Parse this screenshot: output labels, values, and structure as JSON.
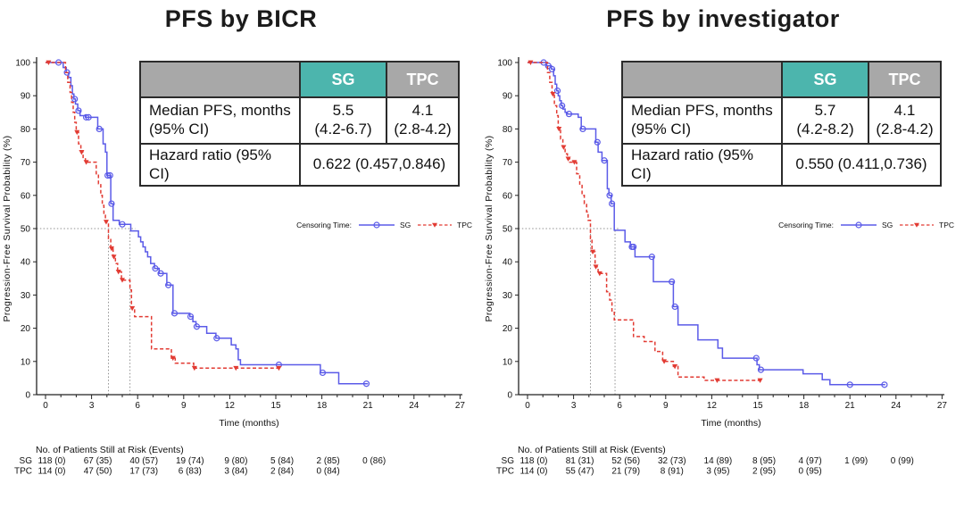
{
  "chart_data": [
    {
      "type": "line",
      "subtype": "kaplan-meier",
      "title": "PFS by BICR",
      "xlabel": "Time (months)",
      "ylabel": "Progression-Free Survival Probability (%)",
      "xlim": [
        0,
        27
      ],
      "ylim": [
        0,
        100
      ],
      "x_ticks": [
        0,
        3,
        6,
        9,
        12,
        15,
        18,
        21,
        24,
        27
      ],
      "y_ticks": [
        0,
        10,
        20,
        30,
        40,
        50,
        60,
        70,
        80,
        90,
        100
      ],
      "grid": "off",
      "legend": {
        "label": "Censoring Time:",
        "entries": [
          "SG",
          "TPC"
        ],
        "position": "right-middle"
      },
      "reference_lines": {
        "horizontal_y": 50,
        "vertical_x": [
          4.1,
          5.5
        ]
      },
      "series": [
        {
          "name": "SG",
          "color": "#5b5be8",
          "line": "solid",
          "marker": "open-circle",
          "steps": [
            [
              0,
              100
            ],
            [
              1.15,
              98.5
            ],
            [
              1.35,
              97
            ],
            [
              1.5,
              95.5
            ],
            [
              1.65,
              93
            ],
            [
              1.75,
              90.5
            ],
            [
              1.85,
              89
            ],
            [
              1.95,
              87.5
            ],
            [
              2.1,
              85.5
            ],
            [
              2.25,
              84
            ],
            [
              2.6,
              83.5
            ],
            [
              3.4,
              80
            ],
            [
              3.75,
              75.5
            ],
            [
              3.9,
              73
            ],
            [
              4.0,
              66
            ],
            [
              4.25,
              57.5
            ],
            [
              4.4,
              52.5
            ],
            [
              4.8,
              51.3
            ],
            [
              5.55,
              49.3
            ],
            [
              6.05,
              47.5
            ],
            [
              6.2,
              46
            ],
            [
              6.35,
              44.5
            ],
            [
              6.5,
              43
            ],
            [
              6.65,
              41.5
            ],
            [
              6.85,
              39.5
            ],
            [
              7.1,
              38
            ],
            [
              7.4,
              36.5
            ],
            [
              7.9,
              33
            ],
            [
              8.3,
              24.5
            ],
            [
              9.4,
              23.5
            ],
            [
              9.6,
              22
            ],
            [
              9.8,
              20.5
            ],
            [
              10.5,
              18.5
            ],
            [
              11.1,
              17
            ],
            [
              12.1,
              15
            ],
            [
              12.4,
              13.8
            ],
            [
              12.55,
              10.5
            ],
            [
              12.7,
              9
            ],
            [
              17.9,
              6.6
            ],
            [
              19.1,
              3.3
            ],
            [
              21,
              3.3
            ]
          ],
          "censor_marks": [
            [
              0.85,
              100
            ],
            [
              1.4,
              97
            ],
            [
              1.9,
              89
            ],
            [
              2.15,
              85.5
            ],
            [
              2.65,
              83.5
            ],
            [
              2.8,
              83.5
            ],
            [
              3.5,
              80
            ],
            [
              4.05,
              66
            ],
            [
              4.2,
              66
            ],
            [
              4.3,
              57.5
            ],
            [
              5.0,
              51.3
            ],
            [
              7.15,
              38
            ],
            [
              7.5,
              36.5
            ],
            [
              8.0,
              33
            ],
            [
              8.4,
              24.5
            ],
            [
              9.45,
              23.5
            ],
            [
              9.85,
              20.5
            ],
            [
              11.15,
              17
            ],
            [
              15.2,
              9
            ],
            [
              18.05,
              6.6
            ],
            [
              20.9,
              3.3
            ]
          ]
        },
        {
          "name": "TPC",
          "color": "#e23b33",
          "line": "dashed",
          "marker": "filled-triangle-down",
          "steps": [
            [
              0,
              100
            ],
            [
              1.3,
              97
            ],
            [
              1.45,
              94
            ],
            [
              1.6,
              91
            ],
            [
              1.7,
              88
            ],
            [
              1.8,
              85
            ],
            [
              1.9,
              82
            ],
            [
              2.0,
              79
            ],
            [
              2.15,
              75.5
            ],
            [
              2.3,
              73
            ],
            [
              2.45,
              71
            ],
            [
              2.6,
              70
            ],
            [
              3.3,
              66.5
            ],
            [
              3.45,
              63.5
            ],
            [
              3.6,
              60
            ],
            [
              3.7,
              57
            ],
            [
              3.8,
              54
            ],
            [
              3.9,
              52
            ],
            [
              4.1,
              47
            ],
            [
              4.25,
              44
            ],
            [
              4.4,
              41.5
            ],
            [
              4.55,
              39.5
            ],
            [
              4.7,
              37
            ],
            [
              4.95,
              34.5
            ],
            [
              5.5,
              31.5
            ],
            [
              5.6,
              26
            ],
            [
              5.8,
              23.5
            ],
            [
              6.9,
              13.8
            ],
            [
              8.2,
              11
            ],
            [
              8.45,
              9.5
            ],
            [
              9.65,
              8
            ],
            [
              15.3,
              8
            ]
          ],
          "censor_marks": [
            [
              0.2,
              100
            ],
            [
              2.05,
              79
            ],
            [
              2.35,
              73
            ],
            [
              2.65,
              70
            ],
            [
              3.95,
              52
            ],
            [
              4.3,
              44
            ],
            [
              4.45,
              41.5
            ],
            [
              4.75,
              37
            ],
            [
              5.0,
              34.5
            ],
            [
              5.65,
              26
            ],
            [
              8.3,
              11
            ],
            [
              9.7,
              8
            ],
            [
              12.4,
              8
            ],
            [
              15.2,
              8
            ]
          ]
        }
      ],
      "stats_table": {
        "columns": [
          "SG",
          "TPC"
        ],
        "median_row": {
          "label_line1": "Median PFS, months",
          "label_line2": "(95% CI)",
          "sg_line1": "5.5",
          "sg_line2": "(4.2-6.7)",
          "tpc_line1": "4.1",
          "tpc_line2": "(2.8-4.2)"
        },
        "hazard_row": {
          "label": "Hazard ratio (95% CI)",
          "value": "0.622 (0.457,0.846)"
        }
      },
      "at_risk": {
        "title": "No. of Patients Still at Risk (Events)",
        "times": [
          0,
          3,
          6,
          9,
          12,
          15,
          18,
          21,
          24
        ],
        "rows": [
          {
            "name": "SG",
            "values": [
              "118 (0)",
              "67 (35)",
              "40 (57)",
              "19 (74)",
              "9 (80)",
              "5 (84)",
              "2 (85)",
              "0 (86)"
            ]
          },
          {
            "name": "TPC",
            "values": [
              "114 (0)",
              "47 (50)",
              "17 (73)",
              "6 (83)",
              "3 (84)",
              "2 (84)",
              "0 (84)"
            ]
          }
        ]
      }
    },
    {
      "type": "line",
      "subtype": "kaplan-meier",
      "title": "PFS by investigator",
      "xlabel": "Time (months)",
      "ylabel": "Progression-Free Survival Probability (%)",
      "xlim": [
        0,
        27
      ],
      "ylim": [
        0,
        100
      ],
      "x_ticks": [
        0,
        3,
        6,
        9,
        12,
        15,
        18,
        21,
        24,
        27
      ],
      "y_ticks": [
        0,
        10,
        20,
        30,
        40,
        50,
        60,
        70,
        80,
        90,
        100
      ],
      "grid": "off",
      "legend": {
        "label": "Censoring Time:",
        "entries": [
          "SG",
          "TPC"
        ],
        "position": "right-middle"
      },
      "reference_lines": {
        "horizontal_y": 50,
        "vertical_x": [
          4.1,
          5.7
        ]
      },
      "series": [
        {
          "name": "SG",
          "color": "#5b5be8",
          "line": "solid",
          "marker": "open-circle",
          "steps": [
            [
              0,
              100
            ],
            [
              1.25,
              99
            ],
            [
              1.55,
              98
            ],
            [
              1.7,
              96
            ],
            [
              1.8,
              93.5
            ],
            [
              1.9,
              91.5
            ],
            [
              2.0,
              90
            ],
            [
              2.1,
              88.5
            ],
            [
              2.2,
              87
            ],
            [
              2.3,
              86
            ],
            [
              2.45,
              85
            ],
            [
              2.6,
              84.5
            ],
            [
              3.3,
              83.5
            ],
            [
              3.5,
              80
            ],
            [
              4.45,
              76
            ],
            [
              4.6,
              73
            ],
            [
              4.85,
              70.5
            ],
            [
              5.2,
              62
            ],
            [
              5.3,
              60
            ],
            [
              5.45,
              57.5
            ],
            [
              5.65,
              49.5
            ],
            [
              6.35,
              46
            ],
            [
              6.7,
              44.5
            ],
            [
              7.0,
              41.5
            ],
            [
              8.2,
              34
            ],
            [
              9.5,
              26.5
            ],
            [
              9.8,
              21
            ],
            [
              11.1,
              16.5
            ],
            [
              12.4,
              14
            ],
            [
              12.7,
              11
            ],
            [
              14.95,
              9
            ],
            [
              15.1,
              7.5
            ],
            [
              17.95,
              6.3
            ],
            [
              19.2,
              4.5
            ],
            [
              19.7,
              3
            ],
            [
              23.3,
              3
            ]
          ],
          "censor_marks": [
            [
              1.05,
              100
            ],
            [
              1.35,
              99
            ],
            [
              1.6,
              98
            ],
            [
              1.95,
              91.5
            ],
            [
              2.25,
              87
            ],
            [
              2.7,
              84.5
            ],
            [
              3.6,
              80
            ],
            [
              4.55,
              76
            ],
            [
              5.0,
              70.5
            ],
            [
              5.35,
              60
            ],
            [
              5.5,
              57.5
            ],
            [
              6.8,
              44.5
            ],
            [
              6.9,
              44.5
            ],
            [
              8.1,
              41.5
            ],
            [
              9.4,
              34
            ],
            [
              9.6,
              26.5
            ],
            [
              14.9,
              11
            ],
            [
              15.2,
              7.5
            ],
            [
              21.0,
              3
            ],
            [
              23.25,
              3
            ]
          ]
        },
        {
          "name": "TPC",
          "color": "#e23b33",
          "line": "dashed",
          "marker": "filled-triangle-down",
          "steps": [
            [
              0,
              100
            ],
            [
              1.3,
              97
            ],
            [
              1.45,
              94
            ],
            [
              1.6,
              90.5
            ],
            [
              1.75,
              87
            ],
            [
              1.9,
              84
            ],
            [
              2.0,
              80
            ],
            [
              2.15,
              77
            ],
            [
              2.3,
              74.5
            ],
            [
              2.45,
              72.5
            ],
            [
              2.6,
              71
            ],
            [
              2.75,
              70
            ],
            [
              3.2,
              66.5
            ],
            [
              3.4,
              63
            ],
            [
              3.55,
              60
            ],
            [
              3.7,
              57.5
            ],
            [
              3.85,
              55
            ],
            [
              3.95,
              52.5
            ],
            [
              4.1,
              47
            ],
            [
              4.2,
              43
            ],
            [
              4.4,
              38.5
            ],
            [
              4.6,
              36.5
            ],
            [
              5.15,
              31
            ],
            [
              5.35,
              28.5
            ],
            [
              5.5,
              25
            ],
            [
              5.65,
              22.5
            ],
            [
              6.9,
              17.5
            ],
            [
              7.6,
              16
            ],
            [
              8.3,
              13
            ],
            [
              8.8,
              10
            ],
            [
              9.5,
              8.5
            ],
            [
              9.8,
              5.3
            ],
            [
              11.5,
              4.3
            ],
            [
              15.3,
              4.3
            ]
          ],
          "censor_marks": [
            [
              0.2,
              100
            ],
            [
              1.65,
              90.5
            ],
            [
              2.05,
              80
            ],
            [
              2.35,
              74.5
            ],
            [
              2.65,
              71
            ],
            [
              3.05,
              70
            ],
            [
              4.25,
              43
            ],
            [
              4.45,
              38.5
            ],
            [
              4.7,
              36.5
            ],
            [
              8.9,
              10
            ],
            [
              9.6,
              8.5
            ],
            [
              12.35,
              4.3
            ],
            [
              15.15,
              4.3
            ]
          ]
        }
      ],
      "stats_table": {
        "columns": [
          "SG",
          "TPC"
        ],
        "median_row": {
          "label_line1": "Median PFS, months",
          "label_line2": "(95% CI)",
          "sg_line1": "5.7",
          "sg_line2": "(4.2-8.2)",
          "tpc_line1": "4.1",
          "tpc_line2": "(2.8-4.2)"
        },
        "hazard_row": {
          "label": "Hazard ratio (95% CI)",
          "value": "0.550 (0.411,0.736)"
        }
      },
      "at_risk": {
        "title": "No. of Patients Still at Risk (Events)",
        "times": [
          0,
          3,
          6,
          9,
          12,
          15,
          18,
          21,
          24
        ],
        "rows": [
          {
            "name": "SG",
            "values": [
              "118 (0)",
              "81 (31)",
              "52 (56)",
              "32 (73)",
              "14 (89)",
              "8 (95)",
              "4 (97)",
              "1 (99)",
              "0 (99)"
            ]
          },
          {
            "name": "TPC",
            "values": [
              "114 (0)",
              "55 (47)",
              "21 (79)",
              "8 (91)",
              "3 (95)",
              "2 (95)",
              "0 (95)"
            ]
          }
        ]
      }
    }
  ],
  "ui": {
    "colors": {
      "sg_line": "#5b5be8",
      "tpc_line": "#e23b33",
      "teal_header": "#4cb5ad",
      "gray_header": "#a8a8a8",
      "reference_dotted": "#909090",
      "axis": "#222222",
      "text": "#111111"
    }
  }
}
